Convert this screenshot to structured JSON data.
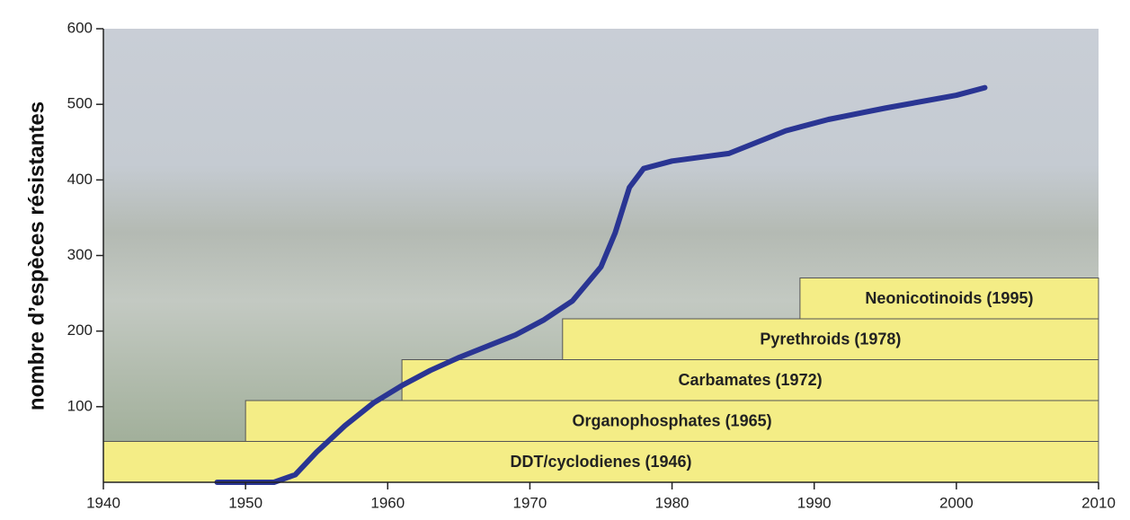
{
  "chart_data": {
    "type": "line",
    "y_label": "nombre d’espèces résistantes",
    "x": [
      1948,
      1952,
      1953.5,
      1955,
      1957,
      1959,
      1961,
      1963,
      1965,
      1967,
      1969,
      1971,
      1973,
      1975,
      1976,
      1977,
      1978,
      1980,
      1982,
      1984,
      1986,
      1988,
      1991,
      1995,
      2000,
      2002
    ],
    "series": [
      {
        "color": "#2a3593",
        "values": [
          0,
          0,
          10,
          40,
          75,
          105,
          128,
          148,
          165,
          180,
          195,
          215,
          240,
          285,
          330,
          390,
          415,
          425,
          430,
          435,
          450,
          465,
          480,
          495,
          512,
          522
        ]
      }
    ],
    "bands": [
      {
        "label": "DDT/cyclodienes (1946)",
        "start": 1940
      },
      {
        "label": "Organophosphates (1965)",
        "start": 1950
      },
      {
        "label": "Carbamates (1972)",
        "start": 1961
      },
      {
        "label": "Pyrethroids (1978)",
        "start": 1972.3
      },
      {
        "label": "Neonicotinoids (1995)",
        "start": 1989
      }
    ],
    "band_color": "#f4ed86",
    "xlim": [
      1940,
      2010
    ],
    "xticks": [
      1940,
      1950,
      1960,
      1970,
      1980,
      1990,
      2000,
      2010
    ],
    "ylim": [
      0,
      600
    ],
    "yticks": [
      100,
      200,
      300,
      400,
      500,
      600
    ]
  }
}
